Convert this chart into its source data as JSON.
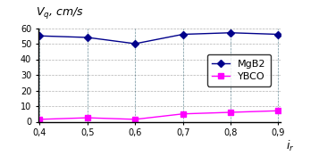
{
  "mgb2_x": [
    0.4,
    0.5,
    0.6,
    0.7,
    0.8,
    0.9
  ],
  "mgb2_y": [
    55,
    54,
    50,
    56,
    57,
    56
  ],
  "ybco_x": [
    0.4,
    0.5,
    0.6,
    0.7,
    0.8,
    0.9
  ],
  "ybco_y": [
    1.5,
    2.5,
    1.5,
    5,
    6,
    7
  ],
  "mgb2_color": "#00008B",
  "ybco_color": "#FF00FF",
  "xlabel": "$i_r$",
  "ylabel": "$V_{q}$, cm/s",
  "xlim": [
    0.4,
    0.9
  ],
  "ylim": [
    0,
    60
  ],
  "yticks": [
    0,
    10,
    20,
    30,
    40,
    50,
    60
  ],
  "xticks": [
    0.4,
    0.5,
    0.6,
    0.7,
    0.8,
    0.9
  ],
  "xtick_labels": [
    "0,4",
    "0,5",
    "0,6",
    "0,7",
    "0,8",
    "0,9"
  ],
  "legend_labels": [
    "MgB2",
    "YBCO"
  ],
  "tick_fontsize": 7,
  "legend_fontsize": 8,
  "ylabel_fontsize": 9
}
